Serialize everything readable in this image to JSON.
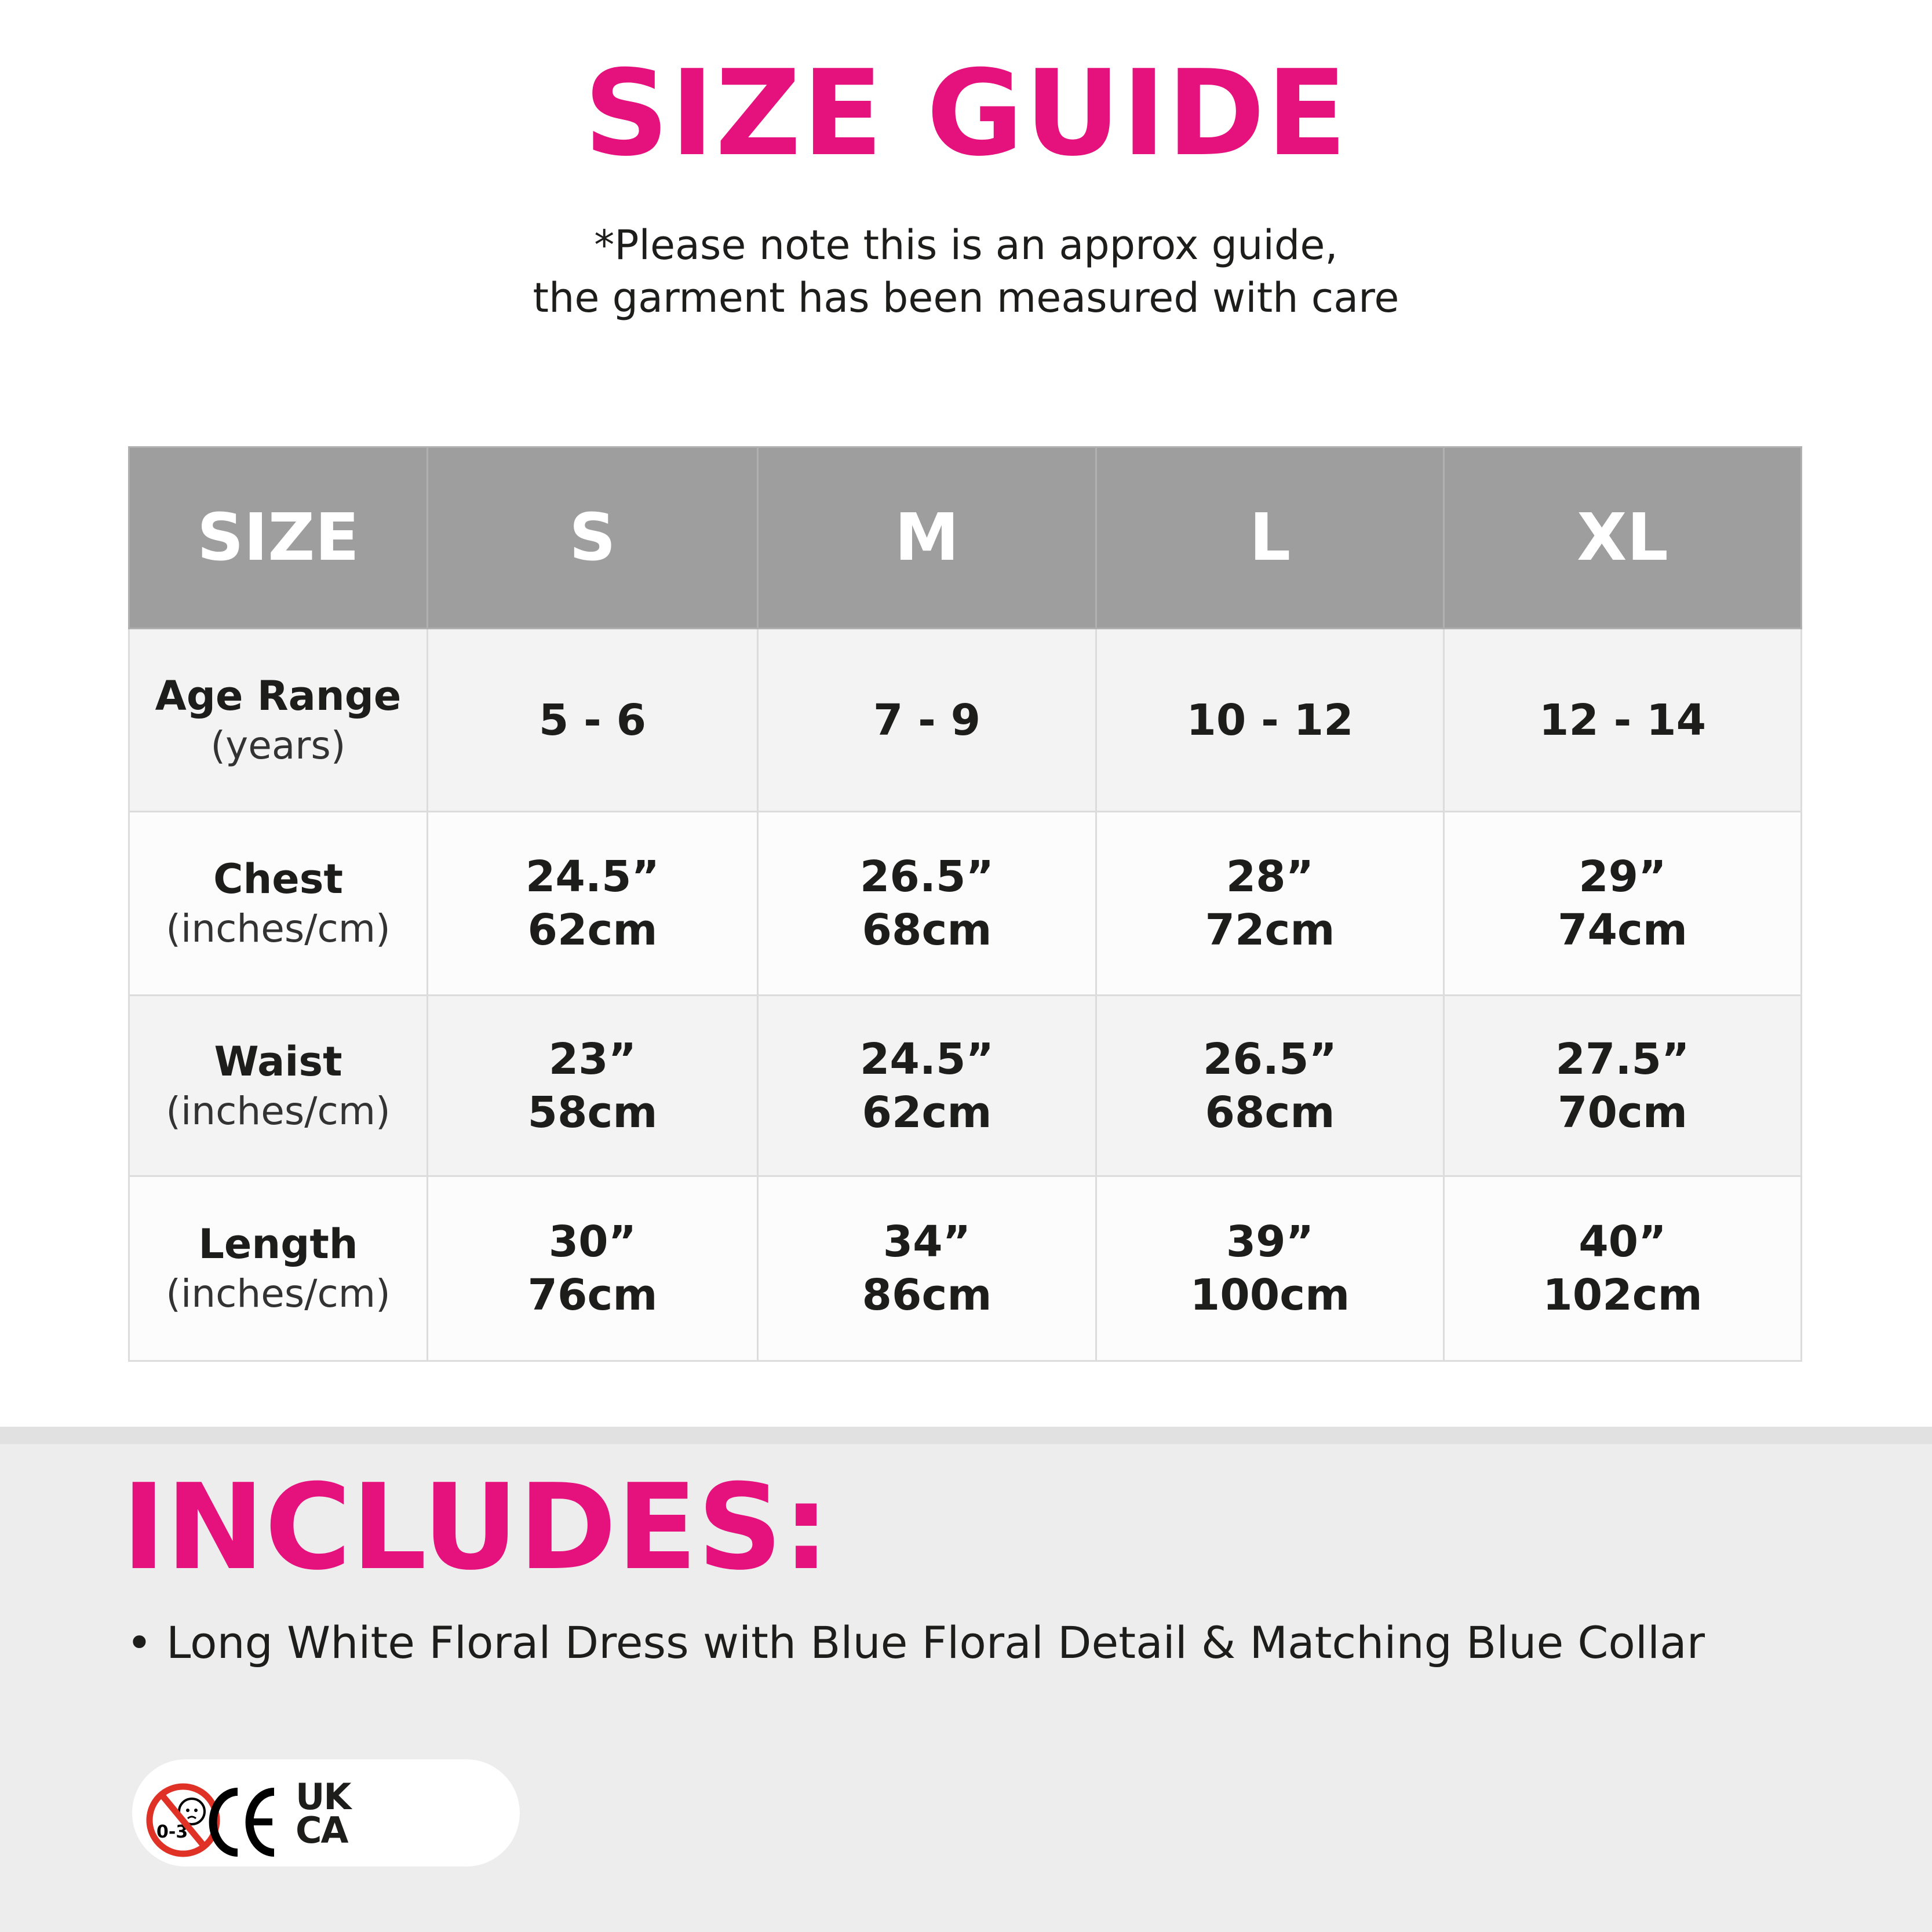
{
  "header": {
    "title": "SIZE GUIDE",
    "note_lines": [
      "*Please note this is an approx guide,",
      "the garment has been measured with care"
    ]
  },
  "table": {
    "columns": [
      "SIZE",
      "S",
      "M",
      "L",
      "XL"
    ],
    "rows": [
      {
        "label": "Age Range",
        "unit": "(years)",
        "values": [
          [
            "5 - 6"
          ],
          [
            "7 - 9"
          ],
          [
            "10 - 12"
          ],
          [
            "12 - 14"
          ]
        ]
      },
      {
        "label": "Chest",
        "unit": "(inches/cm)",
        "values": [
          [
            "24.5”",
            "62cm"
          ],
          [
            "26.5”",
            "68cm"
          ],
          [
            "28”",
            "72cm"
          ],
          [
            "29”",
            "74cm"
          ]
        ]
      },
      {
        "label": "Waist",
        "unit": "(inches/cm)",
        "values": [
          [
            "23”",
            "58cm"
          ],
          [
            "24.5”",
            "62cm"
          ],
          [
            "26.5”",
            "68cm"
          ],
          [
            "27.5”",
            "70cm"
          ]
        ]
      },
      {
        "label": "Length",
        "unit": "(inches/cm)",
        "values": [
          [
            "30”",
            "76cm"
          ],
          [
            "34”",
            "86cm"
          ],
          [
            "39”",
            "100cm"
          ],
          [
            "40”",
            "102cm"
          ]
        ]
      }
    ]
  },
  "includes": {
    "title": "INCLUDES:",
    "items": [
      "• Long White Floral Dress with Blue Floral Detail & Matching Blue Collar"
    ]
  },
  "badges": {
    "icons": [
      "not-suitable-under-3-icon",
      "ce-mark-icon",
      "ukca-mark-icon"
    ],
    "age_warning_text": "0-3",
    "ce_text": "CE",
    "ukca_text": "UK CA"
  },
  "colors": {
    "accent": "#e5127d",
    "header_bg": "#9e9e9e",
    "warning_red": "#e03127"
  }
}
